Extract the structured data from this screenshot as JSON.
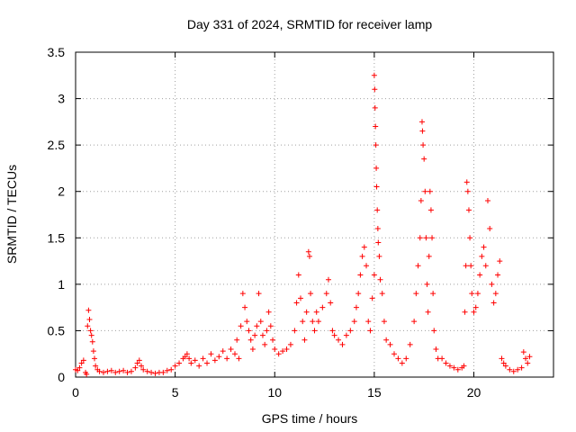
{
  "chart_data": {
    "type": "scatter",
    "title": "Day 331 of 2024, SRMTID for receiver lamp",
    "xlabel": "GPS time / hours",
    "ylabel": "SRMTID / TECUs",
    "xlim": [
      0,
      24
    ],
    "ylim": [
      0,
      3.5
    ],
    "grid": true,
    "marker": "+",
    "color": "#ff0000",
    "x_ticks": [
      0,
      5,
      10,
      15,
      20
    ],
    "x_tick_labels": [
      "0",
      "5",
      "10",
      "15",
      "20"
    ],
    "y_ticks": [
      0,
      0.5,
      1,
      1.5,
      2,
      2.5,
      3,
      3.5
    ],
    "y_tick_labels": [
      "0",
      "0.5",
      "1",
      "1.5",
      "2",
      "2.5",
      "3",
      "3.5"
    ],
    "series": [
      {
        "name": "SRMTID",
        "points": [
          [
            0.0,
            0.08
          ],
          [
            0.1,
            0.07
          ],
          [
            0.2,
            0.1
          ],
          [
            0.3,
            0.15
          ],
          [
            0.4,
            0.18
          ],
          [
            0.5,
            0.05
          ],
          [
            0.55,
            0.03
          ],
          [
            0.6,
            0.55
          ],
          [
            0.65,
            0.72
          ],
          [
            0.7,
            0.62
          ],
          [
            0.75,
            0.5
          ],
          [
            0.8,
            0.45
          ],
          [
            0.85,
            0.38
          ],
          [
            0.9,
            0.28
          ],
          [
            0.95,
            0.2
          ],
          [
            1.0,
            0.12
          ],
          [
            1.1,
            0.08
          ],
          [
            1.2,
            0.06
          ],
          [
            1.4,
            0.05
          ],
          [
            1.6,
            0.06
          ],
          [
            1.8,
            0.07
          ],
          [
            2.0,
            0.05
          ],
          [
            2.2,
            0.06
          ],
          [
            2.4,
            0.07
          ],
          [
            2.6,
            0.05
          ],
          [
            2.8,
            0.06
          ],
          [
            3.0,
            0.1
          ],
          [
            3.1,
            0.15
          ],
          [
            3.2,
            0.18
          ],
          [
            3.3,
            0.12
          ],
          [
            3.4,
            0.08
          ],
          [
            3.6,
            0.06
          ],
          [
            3.8,
            0.05
          ],
          [
            4.0,
            0.04
          ],
          [
            4.2,
            0.05
          ],
          [
            4.4,
            0.05
          ],
          [
            4.6,
            0.07
          ],
          [
            4.8,
            0.08
          ],
          [
            5.0,
            0.12
          ],
          [
            5.2,
            0.15
          ],
          [
            5.4,
            0.2
          ],
          [
            5.5,
            0.22
          ],
          [
            5.6,
            0.25
          ],
          [
            5.7,
            0.2
          ],
          [
            5.8,
            0.15
          ],
          [
            6.0,
            0.18
          ],
          [
            6.2,
            0.12
          ],
          [
            6.4,
            0.2
          ],
          [
            6.6,
            0.15
          ],
          [
            6.8,
            0.25
          ],
          [
            7.0,
            0.18
          ],
          [
            7.2,
            0.22
          ],
          [
            7.4,
            0.28
          ],
          [
            7.6,
            0.2
          ],
          [
            7.8,
            0.3
          ],
          [
            8.0,
            0.25
          ],
          [
            8.1,
            0.4
          ],
          [
            8.2,
            0.2
          ],
          [
            8.3,
            0.55
          ],
          [
            8.4,
            0.9
          ],
          [
            8.5,
            0.75
          ],
          [
            8.6,
            0.6
          ],
          [
            8.7,
            0.5
          ],
          [
            8.8,
            0.4
          ],
          [
            8.9,
            0.3
          ],
          [
            9.0,
            0.45
          ],
          [
            9.1,
            0.55
          ],
          [
            9.2,
            0.9
          ],
          [
            9.3,
            0.6
          ],
          [
            9.4,
            0.45
          ],
          [
            9.5,
            0.35
          ],
          [
            9.6,
            0.5
          ],
          [
            9.7,
            0.7
          ],
          [
            9.8,
            0.55
          ],
          [
            9.9,
            0.4
          ],
          [
            10.0,
            0.3
          ],
          [
            10.2,
            0.25
          ],
          [
            10.4,
            0.28
          ],
          [
            10.6,
            0.3
          ],
          [
            10.8,
            0.35
          ],
          [
            11.0,
            0.5
          ],
          [
            11.1,
            0.8
          ],
          [
            11.2,
            1.1
          ],
          [
            11.3,
            0.85
          ],
          [
            11.4,
            0.6
          ],
          [
            11.5,
            0.4
          ],
          [
            11.6,
            0.7
          ],
          [
            11.7,
            1.35
          ],
          [
            11.75,
            1.3
          ],
          [
            11.8,
            0.9
          ],
          [
            11.9,
            0.6
          ],
          [
            12.0,
            0.5
          ],
          [
            12.1,
            0.7
          ],
          [
            12.2,
            0.6
          ],
          [
            12.4,
            0.75
          ],
          [
            12.6,
            0.9
          ],
          [
            12.7,
            1.05
          ],
          [
            12.8,
            0.8
          ],
          [
            12.9,
            0.5
          ],
          [
            13.0,
            0.45
          ],
          [
            13.2,
            0.4
          ],
          [
            13.4,
            0.35
          ],
          [
            13.6,
            0.45
          ],
          [
            13.8,
            0.5
          ],
          [
            14.0,
            0.6
          ],
          [
            14.1,
            0.75
          ],
          [
            14.2,
            0.9
          ],
          [
            14.3,
            1.1
          ],
          [
            14.4,
            1.3
          ],
          [
            14.5,
            1.4
          ],
          [
            14.6,
            1.2
          ],
          [
            14.7,
            0.6
          ],
          [
            14.8,
            0.5
          ],
          [
            14.9,
            0.85
          ],
          [
            15.0,
            1.1
          ],
          [
            15.0,
            3.25
          ],
          [
            15.02,
            3.1
          ],
          [
            15.04,
            2.9
          ],
          [
            15.06,
            2.7
          ],
          [
            15.08,
            2.5
          ],
          [
            15.1,
            2.25
          ],
          [
            15.12,
            2.05
          ],
          [
            15.15,
            1.8
          ],
          [
            15.18,
            1.6
          ],
          [
            15.2,
            1.45
          ],
          [
            15.25,
            1.3
          ],
          [
            15.3,
            1.05
          ],
          [
            15.4,
            0.9
          ],
          [
            15.5,
            0.6
          ],
          [
            15.6,
            0.4
          ],
          [
            15.8,
            0.35
          ],
          [
            16.0,
            0.25
          ],
          [
            16.2,
            0.2
          ],
          [
            16.4,
            0.15
          ],
          [
            16.6,
            0.2
          ],
          [
            16.8,
            0.35
          ],
          [
            17.0,
            0.6
          ],
          [
            17.1,
            0.9
          ],
          [
            17.2,
            1.2
          ],
          [
            17.3,
            1.5
          ],
          [
            17.35,
            1.9
          ],
          [
            17.4,
            2.75
          ],
          [
            17.42,
            2.65
          ],
          [
            17.45,
            2.5
          ],
          [
            17.5,
            2.35
          ],
          [
            17.55,
            2.0
          ],
          [
            17.6,
            1.5
          ],
          [
            17.65,
            1.0
          ],
          [
            17.7,
            0.7
          ],
          [
            17.75,
            1.3
          ],
          [
            17.8,
            2.0
          ],
          [
            17.85,
            1.8
          ],
          [
            17.9,
            1.5
          ],
          [
            17.95,
            0.9
          ],
          [
            18.0,
            0.5
          ],
          [
            18.1,
            0.3
          ],
          [
            18.2,
            0.2
          ],
          [
            18.4,
            0.2
          ],
          [
            18.6,
            0.15
          ],
          [
            18.8,
            0.12
          ],
          [
            19.0,
            0.1
          ],
          [
            19.2,
            0.08
          ],
          [
            19.4,
            0.1
          ],
          [
            19.5,
            0.12
          ],
          [
            19.55,
            0.7
          ],
          [
            19.6,
            1.2
          ],
          [
            19.65,
            2.1
          ],
          [
            19.7,
            2.0
          ],
          [
            19.75,
            1.8
          ],
          [
            19.8,
            1.5
          ],
          [
            19.85,
            1.2
          ],
          [
            19.9,
            0.9
          ],
          [
            20.0,
            0.7
          ],
          [
            20.1,
            0.75
          ],
          [
            20.2,
            0.9
          ],
          [
            20.3,
            1.1
          ],
          [
            20.4,
            1.3
          ],
          [
            20.5,
            1.4
          ],
          [
            20.6,
            1.2
          ],
          [
            20.7,
            1.9
          ],
          [
            20.8,
            1.6
          ],
          [
            20.9,
            1.0
          ],
          [
            21.0,
            0.8
          ],
          [
            21.1,
            0.9
          ],
          [
            21.2,
            1.1
          ],
          [
            21.3,
            1.25
          ],
          [
            21.4,
            0.2
          ],
          [
            21.5,
            0.15
          ],
          [
            21.6,
            0.12
          ],
          [
            21.8,
            0.08
          ],
          [
            22.0,
            0.06
          ],
          [
            22.2,
            0.08
          ],
          [
            22.4,
            0.1
          ],
          [
            22.5,
            0.27
          ],
          [
            22.6,
            0.2
          ],
          [
            22.7,
            0.15
          ],
          [
            22.8,
            0.22
          ]
        ]
      }
    ]
  }
}
